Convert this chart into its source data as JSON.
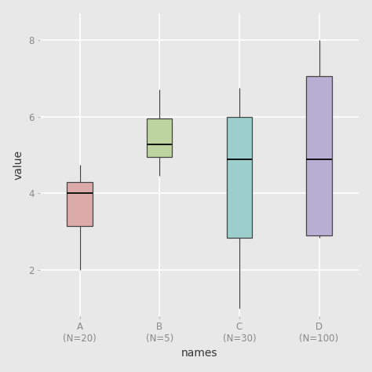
{
  "categories": [
    "A\n(N=20)",
    "B\n(N=5)",
    "C\n(N=30)",
    "D\n(N=100)"
  ],
  "xlabel": "names",
  "ylabel": "value",
  "bg_color": "#e8e8e8",
  "panel_color": "#e8e8e8",
  "grid_color": "#ffffff",
  "ylim": [
    0.8,
    8.7
  ],
  "yticks": [
    2,
    4,
    6,
    8
  ],
  "box_colors": [
    "#dcaaa8",
    "#bdd4a0",
    "#9dcece",
    "#b8aed4"
  ],
  "box_edge_color": "#444444",
  "median_color": "#111111",
  "whisker_color": "#444444",
  "boxes": [
    {
      "q1": 3.15,
      "q3": 4.3,
      "median": 4.0,
      "whislo": 2.0,
      "whishi": 4.75
    },
    {
      "q1": 4.95,
      "q3": 5.95,
      "median": 5.28,
      "whislo": 4.45,
      "whishi": 6.7
    },
    {
      "q1": 2.85,
      "q3": 6.0,
      "median": 4.88,
      "whislo": 1.0,
      "whishi": 6.75
    },
    {
      "q1": 2.9,
      "q3": 7.05,
      "median": 4.88,
      "whislo": 2.85,
      "whishi": 8.0
    }
  ],
  "box_width": 0.32,
  "axis_label_fontsize": 10,
  "tick_fontsize": 8.5,
  "tick_color": "#888888"
}
